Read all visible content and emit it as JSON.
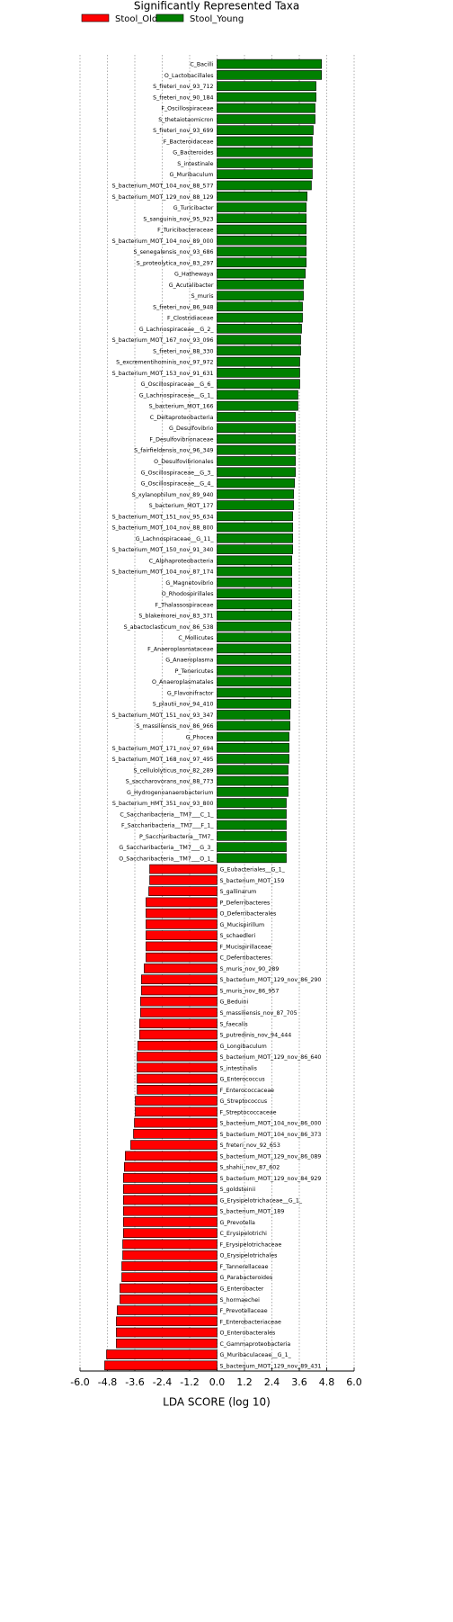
{
  "chart_data": {
    "type": "lda-bar",
    "title": "Significantly Represented Taxa",
    "xlabel": "LDA SCORE (log 10)",
    "xlim": [
      -6,
      6
    ],
    "xticks": [
      {
        "value": -6,
        "label": "-6.0"
      },
      {
        "value": -4.8,
        "label": "-4.8"
      },
      {
        "value": -3.6,
        "label": "-3.6"
      },
      {
        "value": -2.4,
        "label": "-2.4"
      },
      {
        "value": -1.2,
        "label": "-1.2"
      },
      {
        "value": 0,
        "label": "0.0"
      },
      {
        "value": 1.2,
        "label": "1.2"
      },
      {
        "value": 2.4,
        "label": "2.4"
      },
      {
        "value": 3.6,
        "label": "3.6"
      },
      {
        "value": 4.8,
        "label": "4.8"
      },
      {
        "value": 6,
        "label": "6.0"
      }
    ],
    "grid": true,
    "series": [
      {
        "name": "Stool_Old",
        "color": "#ff0000",
        "categories": [
          "G_Eubacteriales__G_1_",
          "S_bacterium_MOT_159",
          "S_gallinarum",
          "P_Deferribacteres",
          "O_Deferribacterales",
          "G_Mucispirillum",
          "S_schaedleri",
          "F_Mucispirillaceae",
          "C_Deferribacteres",
          "S_muris_nov_90_289",
          "S_bacterium_MOT_129_nov_86_290",
          "S_muris_nov_86_957",
          "G_Beduini",
          "S_massiliensis_nov_87_705",
          "S_faecalis",
          "S_putredinis_nov_94_444",
          "G_Longibaculum",
          "S_bacterium_MOT_129_nov_86_640",
          "S_intestinalis",
          "G_Enterococcus",
          "F_Enterococcaceae",
          "G_Streptococcus",
          "F_Streptococcaceae",
          "S_bacterium_MOT_104_nov_86_000",
          "S_bacterium_MOT_104_nov_86_373",
          "S_freteri_nov_92_653",
          "S_bacterium_MOT_129_nov_86_089",
          "S_shahii_nov_87_602",
          "S_bacterium_MOT_129_nov_84_929",
          "S_goldsteinii",
          "G_Erysipelotrichaceae__G_1_",
          "S_bacterium_MOT_189",
          "G_Prevotella",
          "C_Erysipelotrichi",
          "F_Erysipelotrichaceae",
          "O_Erysipelotrichales",
          "F_Tannerellaceae",
          "G_Parabacteroides",
          "G_Enterobacter",
          "S_hormaechei",
          "F_Prevotellaceae",
          "F_Enterobacteriaceae",
          "O_Enterobacterales",
          "C_Gammaproteobacteria",
          "G_Muribaculaceae__G_1_",
          "S_bacterium_MOT_129_nov_89_431"
        ],
        "values": [
          -2.95,
          -2.95,
          -2.99,
          -3.11,
          -3.11,
          -3.11,
          -3.11,
          -3.11,
          -3.11,
          -3.19,
          -3.31,
          -3.31,
          -3.35,
          -3.35,
          -3.39,
          -3.39,
          -3.47,
          -3.5,
          -3.5,
          -3.5,
          -3.5,
          -3.58,
          -3.58,
          -3.62,
          -3.66,
          -3.78,
          -4.02,
          -4.06,
          -4.1,
          -4.1,
          -4.1,
          -4.1,
          -4.1,
          -4.1,
          -4.13,
          -4.13,
          -4.17,
          -4.17,
          -4.25,
          -4.25,
          -4.37,
          -4.41,
          -4.41,
          -4.41,
          -4.84,
          -4.92
        ]
      },
      {
        "name": "Stool_Young",
        "color": "#008000",
        "categories": [
          "C_Bacilli",
          "O_Lactobacillales",
          "S_freteri_nov_93_712",
          "S_freteri_nov_90_184",
          "F_Oscillospiraceae",
          "S_thetaiotaomicron",
          "S_freteri_nov_93_699",
          "F_Bacteroidaceae",
          "G_Bacteroides",
          "S_intestinale",
          "G_Muribaculum",
          "S_bacterium_MOT_104_nov_88_577",
          "S_bacterium_MOT_129_nov_88_129",
          "G_Turicibacter",
          "S_sanguinis_nov_95_923",
          "F_Turicibacteraceae",
          "S_bacterium_MOT_104_nov_89_000",
          "S_senegalensis_nov_93_686",
          "S_proteolytica_nov_83_297",
          "G_Hathewaya",
          "G_Acutalibacter",
          "S_muris",
          "S_freteri_nov_86_948",
          "F_Clostridiaceae",
          "G_Lachnospiraceae__G_2_",
          "S_bacterium_MOT_167_nov_93_096",
          "S_freteri_nov_88_330",
          "S_excrementihominis_nov_97_972",
          "S_bacterium_MOT_153_nov_91_631",
          "G_Oscillospiraceae__G_6_",
          "G_Lachnospiraceae__G_1_",
          "S_bacterium_MOT_166",
          "C_Deltaproteobacteria",
          "G_Desulfovibrio",
          "F_Desulfovibrionaceae",
          "S_fairfieldensis_nov_96_349",
          "O_Desulfovibrionales",
          "G_Oscillospiraceae__G_3_",
          "G_Oscillospiraceae__G_4_",
          "S_xylanophilum_nov_89_940",
          "S_bacterium_MOT_177",
          "S_bacterium_MOT_151_nov_95_634",
          "S_bacterium_MOT_104_nov_88_800",
          "G_Lachnospiraceae__G_11_",
          "S_bacterium_MOT_150_nov_91_340",
          "C_Alphaproteobacteria",
          "S_bacterium_MOT_104_nov_87_174",
          "G_Magnetovibrio",
          "O_Rhodospirillales",
          "F_Thalassospiraceae",
          "S_blakemorei_nov_83_371",
          "S_abactoclasticum_nov_86_538",
          "C_Mollicutes",
          "F_Anaeroplasmataceae",
          "G_Anaeroplasma",
          "P_Tenericutes",
          "O_Anaeroplasmatales",
          "G_Flavonifractor",
          "S_plautii_nov_94_410",
          "S_bacterium_MOT_151_nov_93_347",
          "S_massiliensis_nov_86_966",
          "G_Phocea",
          "S_bacterium_MOT_171_nov_97_694",
          "S_bacterium_MOT_168_nov_97_495",
          "S_cellulolyticus_nov_82_289",
          "S_saccharovorans_nov_88_773",
          "G_Hydrogenoanaerobacterium",
          "S_bacterium_HMT_351_nov_93_800",
          "C_Saccharibacteria__TM7___C_1_",
          "F_Saccharibacteria__TM7___F_1_",
          "P_Saccharibacteria__TM7_",
          "G_Saccharibacteria__TM7___G_3_",
          "O_Saccharibacteria__TM7___O_1_"
        ],
        "values": [
          4.57,
          4.57,
          4.33,
          4.33,
          4.29,
          4.29,
          4.21,
          4.17,
          4.17,
          4.17,
          4.17,
          4.13,
          3.94,
          3.9,
          3.9,
          3.9,
          3.9,
          3.9,
          3.9,
          3.86,
          3.78,
          3.78,
          3.74,
          3.74,
          3.7,
          3.66,
          3.66,
          3.62,
          3.62,
          3.62,
          3.54,
          3.54,
          3.43,
          3.43,
          3.43,
          3.43,
          3.43,
          3.43,
          3.39,
          3.35,
          3.35,
          3.31,
          3.31,
          3.31,
          3.31,
          3.27,
          3.27,
          3.27,
          3.27,
          3.27,
          3.27,
          3.23,
          3.23,
          3.23,
          3.23,
          3.23,
          3.23,
          3.23,
          3.23,
          3.19,
          3.19,
          3.15,
          3.15,
          3.15,
          3.11,
          3.11,
          3.11,
          3.03,
          3.03,
          3.03,
          3.03,
          3.03,
          3.03
        ]
      }
    ]
  }
}
